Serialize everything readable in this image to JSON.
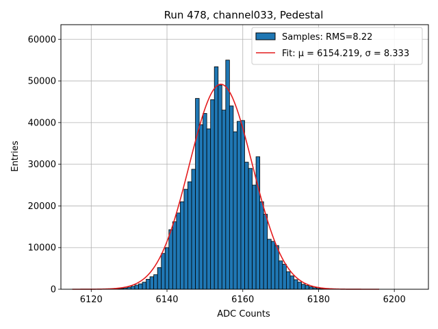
{
  "chart_data": {
    "type": "bar",
    "title": "Run 478, channel033, Pedestal",
    "xlabel": "ADC Counts",
    "ylabel": "Entries",
    "xlim": [
      6112,
      6209
    ],
    "ylim": [
      0,
      63500
    ],
    "xticks": [
      6120,
      6140,
      6160,
      6180,
      6200
    ],
    "yticks": [
      0,
      10000,
      20000,
      30000,
      40000,
      50000,
      60000
    ],
    "grid": true,
    "legend_position": "top-right",
    "legend": [
      {
        "label": "Samples: RMS=8.22"
      },
      {
        "label": "Fit: μ = 6154.219, σ = 8.333"
      }
    ],
    "bin_width": 1,
    "histogram": {
      "name": "Samples: RMS=8.22",
      "color": "#1f77b4",
      "edge_color": "#000000",
      "x": [
        6125,
        6126,
        6127,
        6128,
        6129,
        6130,
        6131,
        6132,
        6133,
        6134,
        6135,
        6136,
        6137,
        6138,
        6139,
        6140,
        6141,
        6142,
        6143,
        6144,
        6145,
        6146,
        6147,
        6148,
        6149,
        6150,
        6151,
        6152,
        6153,
        6154,
        6155,
        6156,
        6157,
        6158,
        6159,
        6160,
        6161,
        6162,
        6163,
        6164,
        6165,
        6166,
        6167,
        6168,
        6169,
        6170,
        6171,
        6172,
        6173,
        6174,
        6175,
        6176,
        6177,
        6178,
        6179,
        6180,
        6181,
        6182
      ],
      "values": [
        30,
        60,
        100,
        180,
        300,
        480,
        700,
        1000,
        1300,
        1700,
        2400,
        3000,
        3500,
        5200,
        8600,
        10000,
        14300,
        16200,
        18300,
        21000,
        24000,
        25800,
        28800,
        45800,
        39500,
        42200,
        38500,
        45500,
        53400,
        49000,
        43000,
        55000,
        44000,
        37800,
        40300,
        40500,
        30500,
        29000,
        25000,
        31800,
        21000,
        18000,
        12000,
        11500,
        10500,
        6800,
        6000,
        4200,
        3200,
        2300,
        1700,
        1200,
        900,
        600,
        350,
        200,
        100,
        50
      ]
    },
    "fit": {
      "name": "Fit: μ = 6154.219, σ = 8.333",
      "color": "#e41a1c",
      "mu": 6154.219,
      "sigma": 8.333,
      "amplitude": 49200,
      "x_range": [
        6115,
        6196
      ]
    }
  }
}
